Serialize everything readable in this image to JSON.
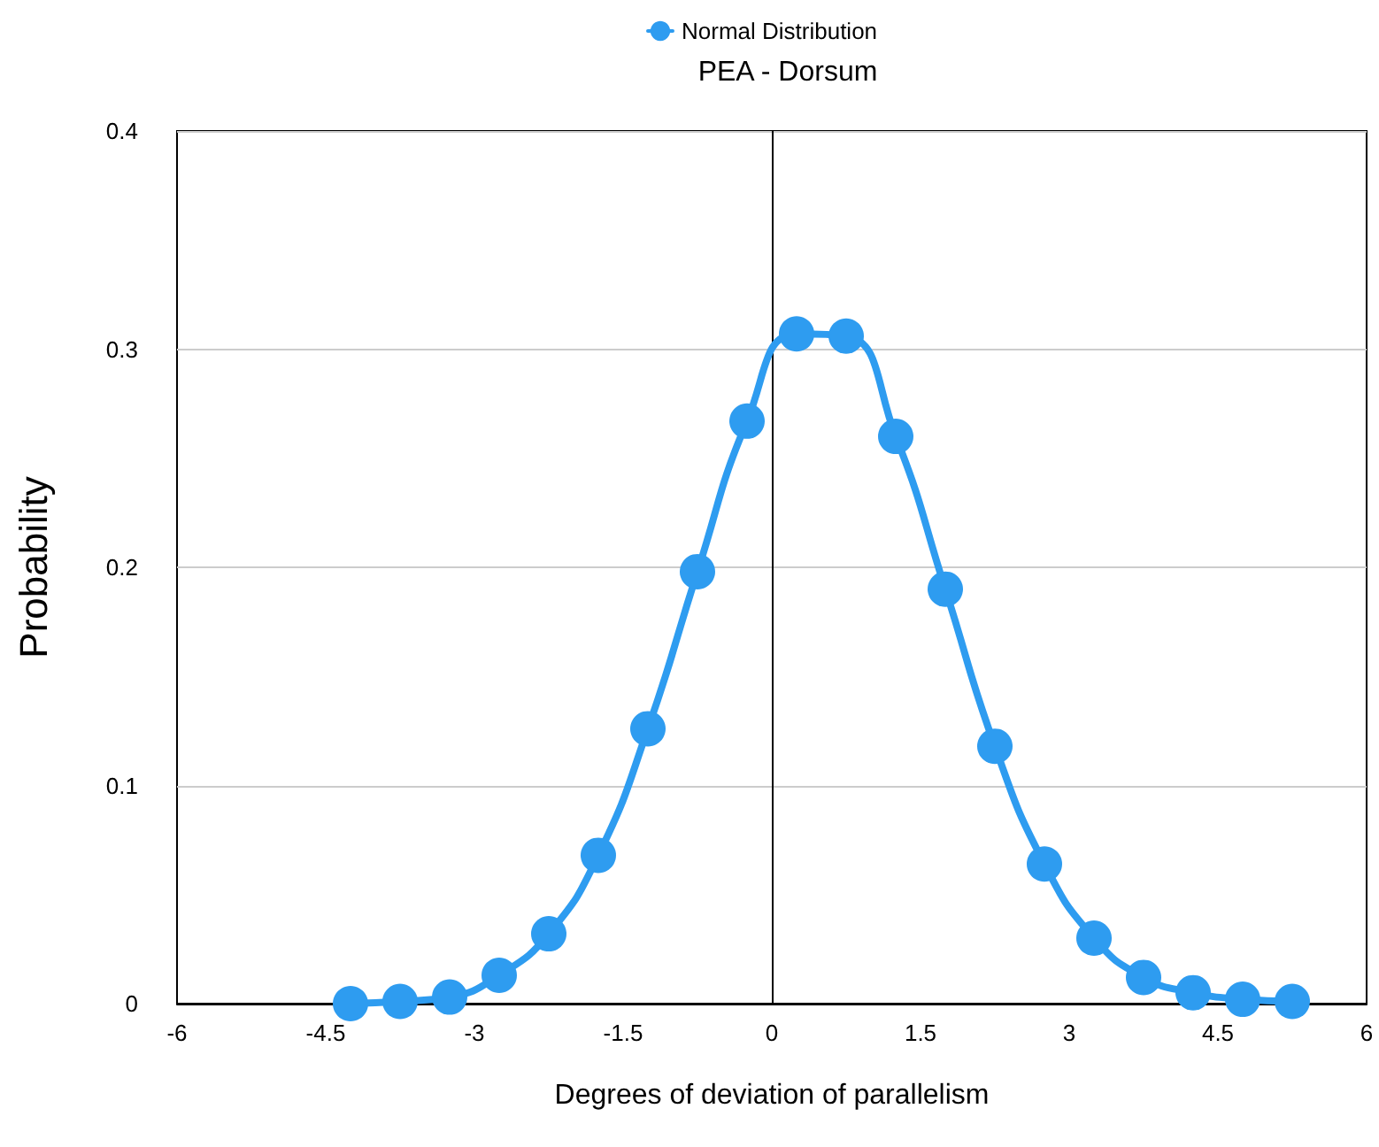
{
  "chart_data": {
    "type": "line",
    "title": "PEA - Dorsum",
    "xlabel": "Degrees of deviation of parallelism",
    "ylabel": "Probability",
    "series": [
      {
        "name": "Normal Distribution",
        "color": "#2e9cf0",
        "x": [
          -4.25,
          -3.75,
          -3.25,
          -2.75,
          -2.25,
          -1.75,
          -1.25,
          -0.75,
          -0.25,
          0.25,
          0.75,
          1.25,
          1.75,
          2.25,
          2.75,
          3.25,
          3.75,
          4.25,
          4.75,
          5.25
        ],
        "values": [
          0,
          0.001,
          0.003,
          0.013,
          0.032,
          0.068,
          0.126,
          0.198,
          0.267,
          0.307,
          0.306,
          0.26,
          0.19,
          0.118,
          0.064,
          0.03,
          0.012,
          0.005,
          0.002,
          0.001
        ]
      }
    ],
    "xlim": [
      -6,
      6
    ],
    "xticks": [
      -6,
      -4.5,
      -3,
      -1.5,
      0,
      1.5,
      3,
      4.5,
      6
    ],
    "ylim": [
      0,
      0.4
    ],
    "yticks": [
      0,
      0.1,
      0.2,
      0.3,
      0.4
    ],
    "grid": "y",
    "legend": "top",
    "marker": "circle",
    "line_style": "solid"
  }
}
